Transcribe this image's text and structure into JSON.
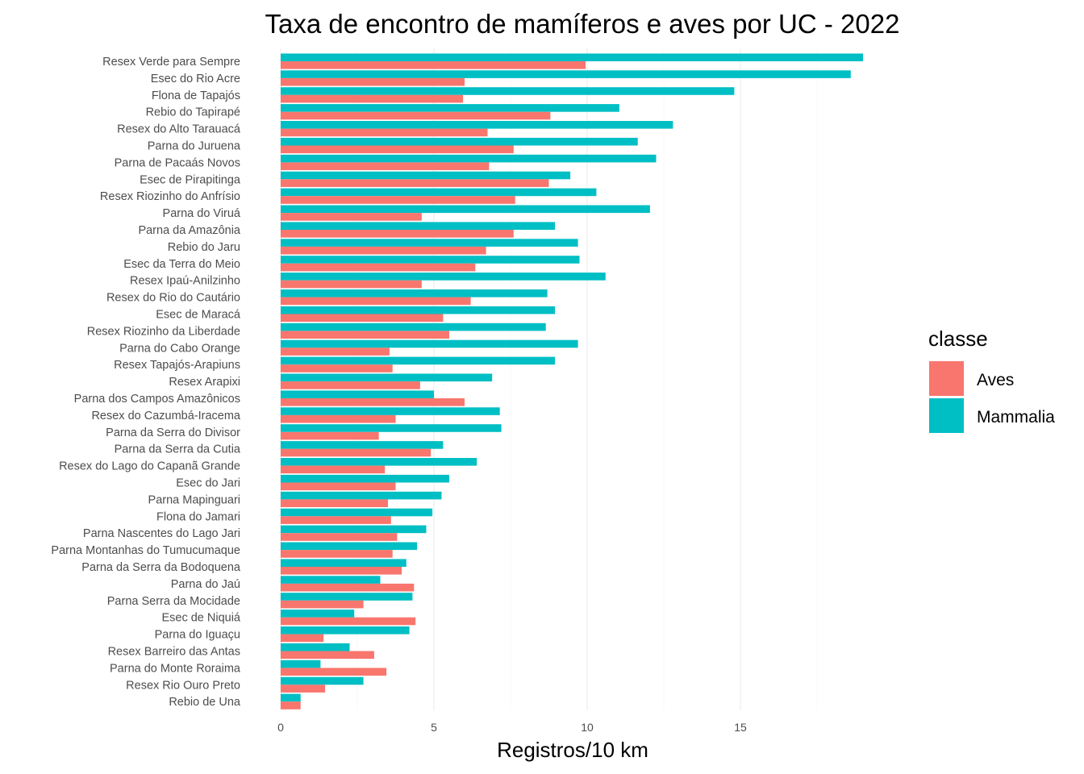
{
  "chart_data": {
    "type": "bar",
    "orientation": "horizontal",
    "title": "Taxa de encontro de mamíferos e aves por UC - 2022",
    "xlabel": "Registros/10 km",
    "ylabel": "",
    "xlim": [
      0,
      20
    ],
    "xticks": [
      0,
      5,
      10,
      15
    ],
    "grid": true,
    "legend": {
      "title": "classe",
      "position": "right"
    },
    "categories": [
      "Resex Verde para Sempre",
      "Esec do Rio Acre",
      "Flona de Tapajós",
      "Rebio do Tapirapé",
      "Resex do Alto Tarauacá",
      "Parna do Juruena",
      "Parna de Pacaás Novos",
      "Esec de Pirapitinga",
      "Resex Riozinho do Anfrísio",
      "Parna do Viruá",
      "Parna da Amazônia",
      "Rebio do Jaru",
      "Esec da Terra do Meio",
      "Resex Ipaú-Anilzinho",
      "Resex do Rio do Cautário",
      "Esec de Maracá",
      "Resex Riozinho da Liberdade",
      "Parna do Cabo Orange",
      "Resex Tapajós-Arapiuns",
      "Resex Arapixi",
      "Parna dos Campos Amazônicos",
      "Resex do Cazumbá-Iracema",
      "Parna da Serra do Divisor",
      "Parna da Serra da Cutia",
      "Resex do Lago do Capanã Grande",
      "Esec do Jari",
      "Parna Mapinguari",
      "Flona do Jamari",
      "Parna Nascentes do Lago Jari",
      "Parna Montanhas do Tumucumaque",
      "Parna da Serra da Bodoquena",
      "Parna do Jaú",
      "Parna Serra da Mocidade",
      "Esec de Niquiá",
      "Parna do Iguaçu",
      "Resex Barreiro das Antas",
      "Parna do Monte Roraima",
      "Resex Rio Ouro Preto",
      "Rebio de Una"
    ],
    "series": [
      {
        "name": "Mammalia",
        "color": "#00BFC4",
        "values": [
          19.0,
          18.6,
          14.8,
          11.05,
          12.8,
          11.65,
          12.25,
          9.45,
          10.3,
          12.05,
          8.95,
          9.7,
          9.75,
          10.6,
          8.7,
          8.95,
          8.65,
          9.7,
          8.95,
          6.9,
          5.0,
          7.15,
          7.2,
          5.3,
          6.4,
          5.5,
          5.25,
          4.95,
          4.75,
          4.45,
          4.1,
          3.25,
          4.3,
          2.4,
          4.2,
          2.25,
          1.3,
          2.7,
          0.65
        ]
      },
      {
        "name": "Aves",
        "color": "#F8766D",
        "values": [
          9.95,
          6.0,
          5.95,
          8.8,
          6.75,
          7.6,
          6.8,
          8.75,
          7.65,
          4.6,
          7.6,
          6.7,
          6.35,
          4.6,
          6.2,
          5.3,
          5.5,
          3.55,
          3.65,
          4.55,
          6.0,
          3.75,
          3.2,
          4.9,
          3.4,
          3.75,
          3.5,
          3.6,
          3.8,
          3.65,
          3.95,
          4.35,
          2.7,
          4.4,
          1.4,
          3.05,
          3.45,
          1.45,
          0.65
        ]
      }
    ]
  }
}
